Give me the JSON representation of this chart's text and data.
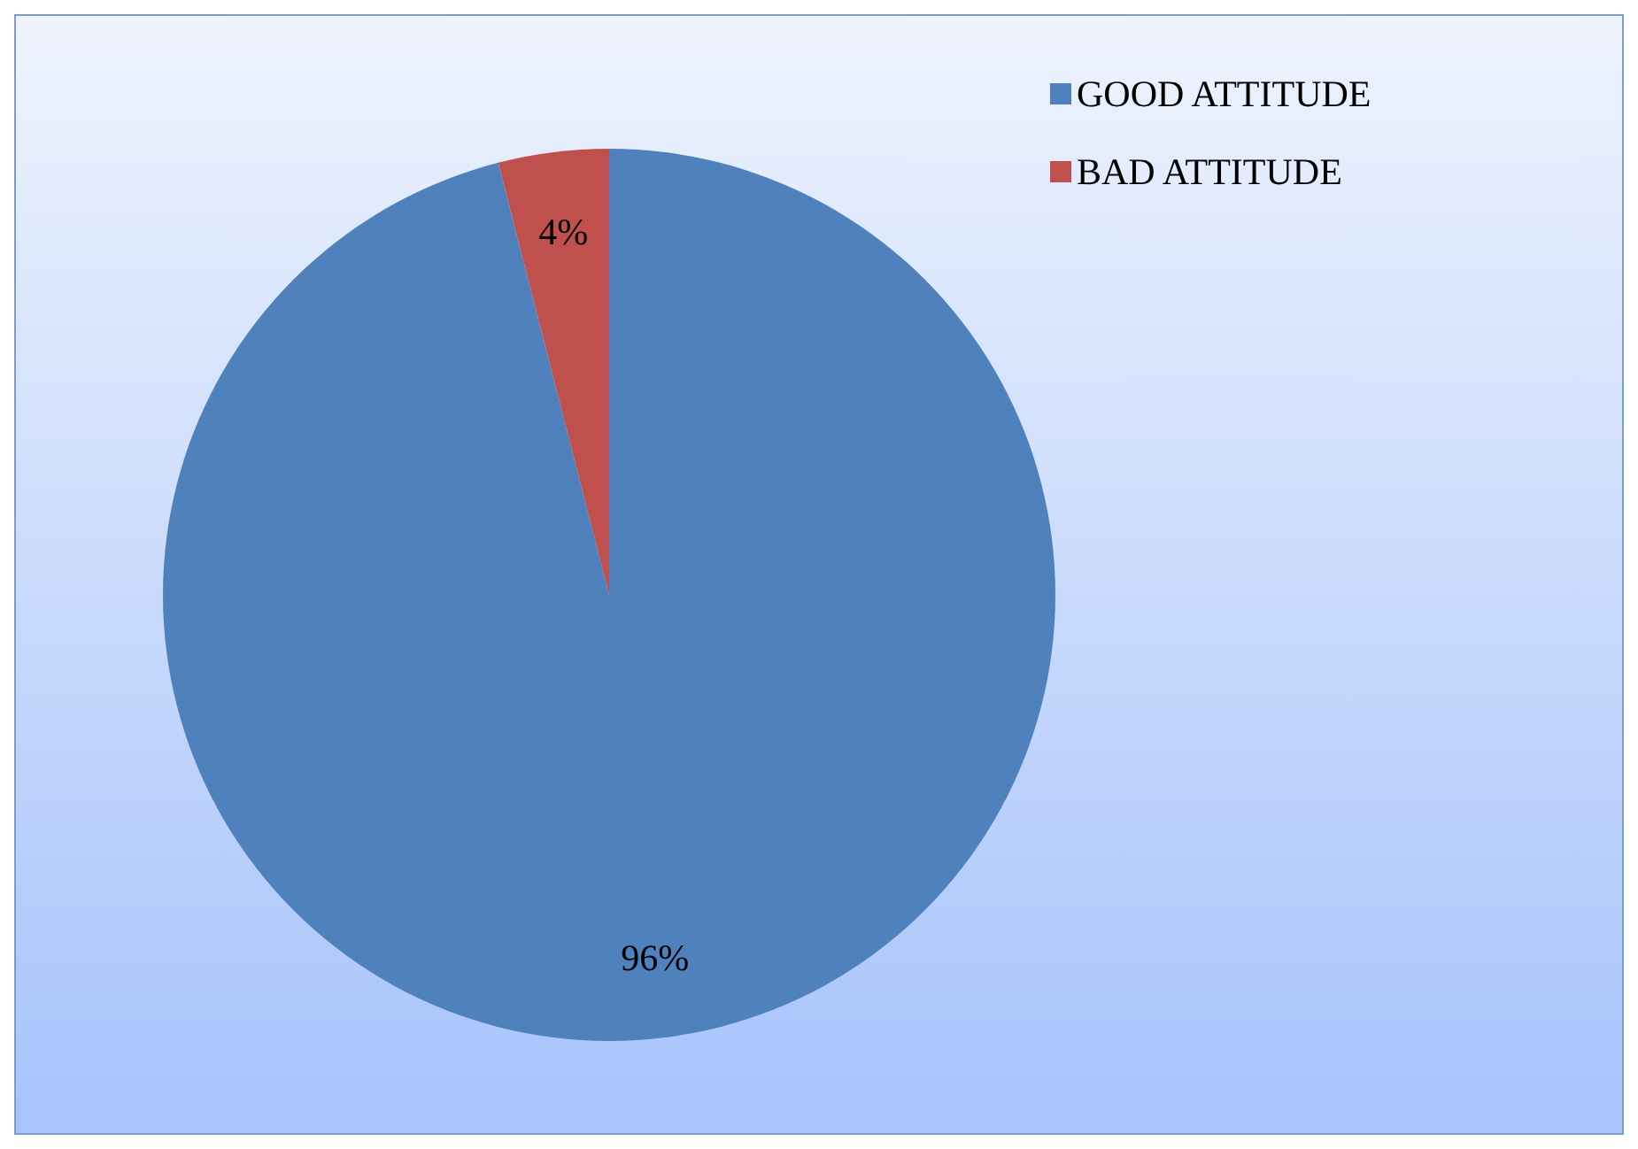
{
  "chart_data": {
    "type": "pie",
    "categories": [
      "GOOD ATTITUDE",
      "BAD ATTITUDE"
    ],
    "values": [
      96,
      4
    ],
    "colors": [
      "#4f81bd",
      "#c0504d"
    ],
    "value_labels": [
      "96%",
      "4%"
    ],
    "legend": "top right"
  }
}
